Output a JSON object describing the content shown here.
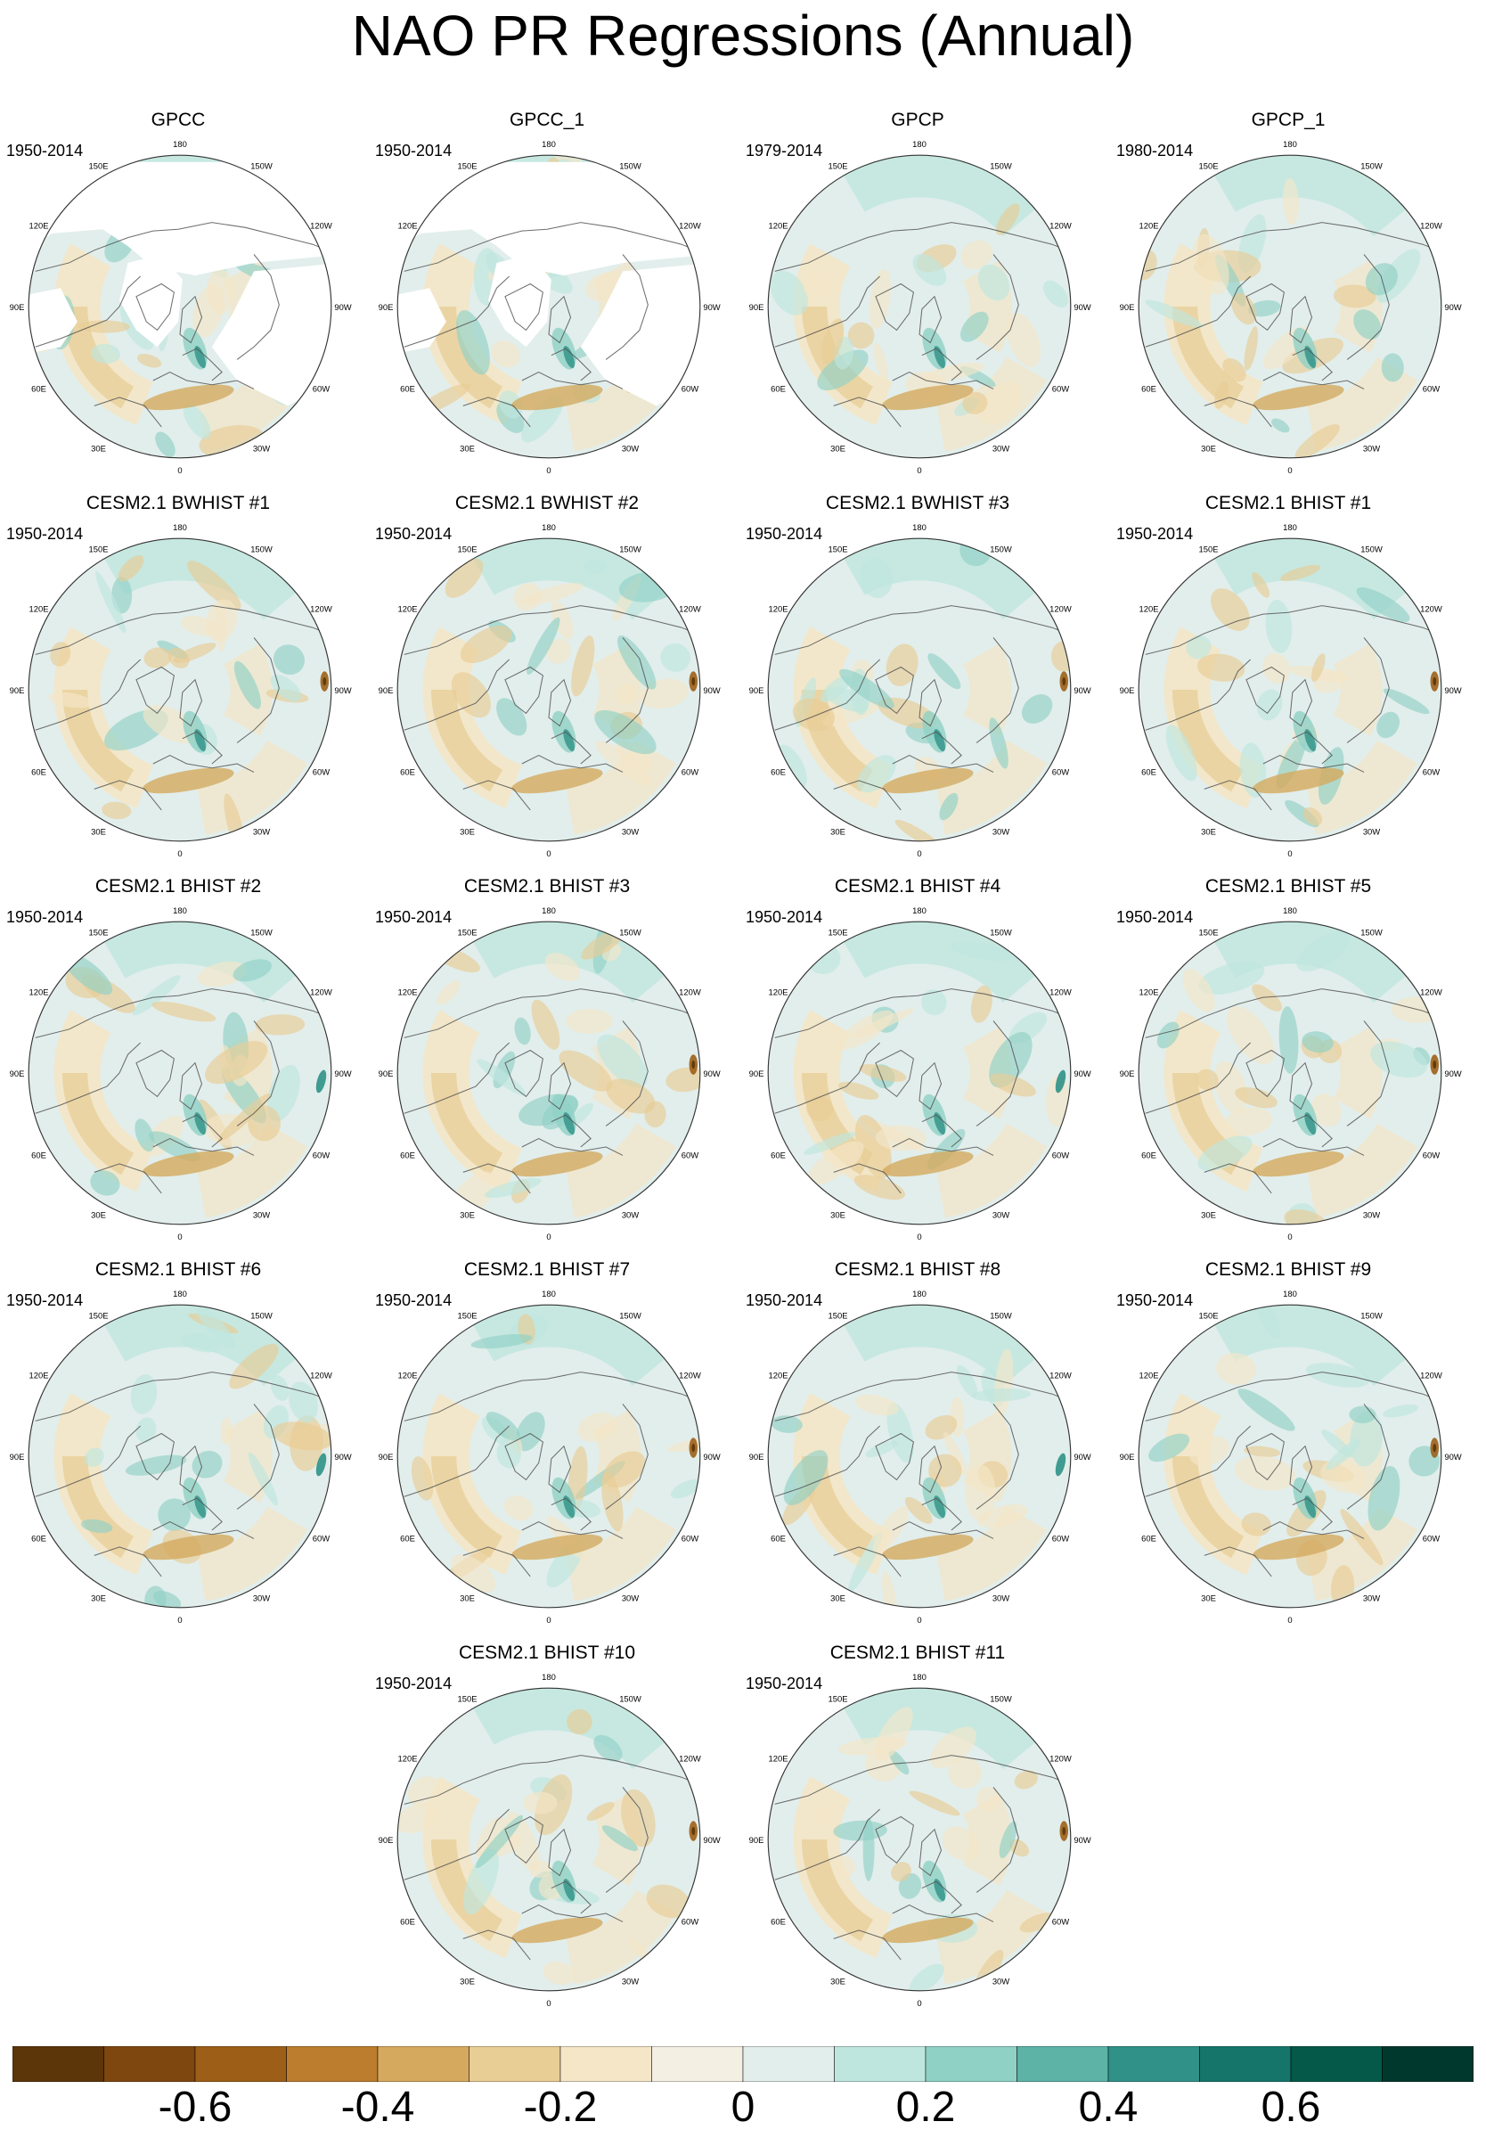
{
  "title": "NAO PR Regressions (Annual)",
  "longitude_labels": [
    "180",
    "150E",
    "120E",
    "90E",
    "60E",
    "30E",
    "0",
    "30W",
    "60W",
    "90W",
    "120W",
    "150W"
  ],
  "panels": [
    {
      "title": "GPCC",
      "period": "1950-2014",
      "land_missing": true
    },
    {
      "title": "GPCC_1",
      "period": "1950-2014",
      "land_missing": true
    },
    {
      "title": "GPCP",
      "period": "1979-2014"
    },
    {
      "title": "GPCP_1",
      "period": "1980-2014"
    },
    {
      "title": "CESM2.1 BWHIST #1",
      "period": "1950-2014"
    },
    {
      "title": "CESM2.1 BWHIST #2",
      "period": "1950-2014"
    },
    {
      "title": "CESM2.1 BWHIST #3",
      "period": "1950-2014"
    },
    {
      "title": "CESM2.1 BHIST #1",
      "period": "1950-2014"
    },
    {
      "title": "CESM2.1 BHIST #2",
      "period": "1950-2014"
    },
    {
      "title": "CESM2.1 BHIST #3",
      "period": "1950-2014"
    },
    {
      "title": "CESM2.1 BHIST #4",
      "period": "1950-2014"
    },
    {
      "title": "CESM2.1 BHIST #5",
      "period": "1950-2014"
    },
    {
      "title": "CESM2.1 BHIST #6",
      "period": "1950-2014"
    },
    {
      "title": "CESM2.1 BHIST #7",
      "period": "1950-2014"
    },
    {
      "title": "CESM2.1 BHIST #8",
      "period": "1950-2014"
    },
    {
      "title": "CESM2.1 BHIST #9",
      "period": "1950-2014"
    },
    {
      "title": "CESM2.1 BHIST #10",
      "period": "1950-2014"
    },
    {
      "title": "CESM2.1 BHIST #11",
      "period": "1950-2014"
    }
  ],
  "colorbar": {
    "colors": [
      "#5c3508",
      "#7d470f",
      "#9d5f18",
      "#bc7d2e",
      "#d5aa5e",
      "#e8cd95",
      "#f4e6c7",
      "#f4efe3",
      "#e2eeec",
      "#bfe6de",
      "#90d1c6",
      "#5db3a6",
      "#2f9187",
      "#15756b",
      "#045949",
      "#01382d"
    ],
    "labels": [
      "-0.6",
      "-0.4",
      "-0.2",
      "0",
      "0.2",
      "0.4",
      "0.6"
    ],
    "label_values": [
      -0.6,
      -0.4,
      -0.2,
      0,
      0.2,
      0.4,
      0.6
    ],
    "min": -0.8,
    "max": 0.8
  }
}
